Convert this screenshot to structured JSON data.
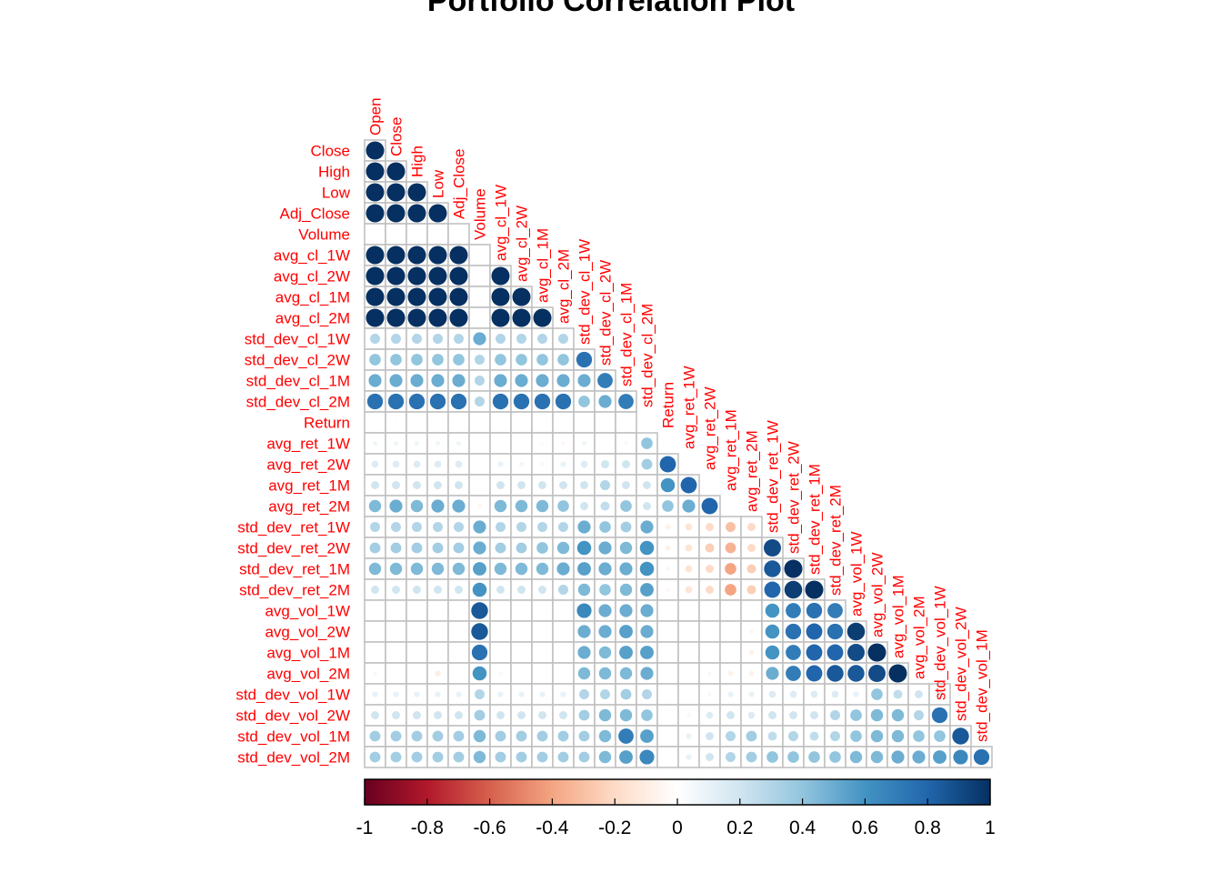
{
  "title": "Portfolio Correlation Plot",
  "chart_data": {
    "type": "heatmap",
    "title": "Portfolio Correlation Plot",
    "layout": "lower-triangle, diagonal omitted, circle glyphs sized by |r|",
    "row_labels": [
      "Close",
      "High",
      "Low",
      "Adj_Close",
      "Volume",
      "avg_cl_1W",
      "avg_cl_2W",
      "avg_cl_1M",
      "avg_cl_2M",
      "std_dev_cl_1W",
      "std_dev_cl_2W",
      "std_dev_cl_1M",
      "std_dev_cl_2M",
      "Return",
      "avg_ret_1W",
      "avg_ret_2W",
      "avg_ret_1M",
      "avg_ret_2M",
      "std_dev_ret_1W",
      "std_dev_ret_2W",
      "std_dev_ret_1M",
      "std_dev_ret_2M",
      "avg_vol_1W",
      "avg_vol_2W",
      "avg_vol_1M",
      "avg_vol_2M",
      "std_dev_vol_1W",
      "std_dev_vol_2W",
      "std_dev_vol_1M",
      "std_dev_vol_2M"
    ],
    "col_labels": [
      "Open",
      "Close",
      "High",
      "Low",
      "Adj_Close",
      "Volume",
      "avg_cl_1W",
      "avg_cl_2W",
      "avg_cl_1M",
      "avg_cl_2M",
      "std_dev_cl_1W",
      "std_dev_cl_2W",
      "std_dev_cl_1M",
      "std_dev_cl_2M",
      "Return",
      "avg_ret_1W",
      "avg_ret_2W",
      "avg_ret_1M",
      "avg_ret_2M",
      "std_dev_ret_1W",
      "std_dev_ret_2W",
      "std_dev_ret_1M",
      "std_dev_ret_2M",
      "avg_vol_1W",
      "avg_vol_2W",
      "avg_vol_1M",
      "avg_vol_2M",
      "std_dev_vol_1W",
      "std_dev_vol_2W",
      "std_dev_vol_1M"
    ],
    "matrix": [
      [
        1.0
      ],
      [
        1.0,
        1.0
      ],
      [
        1.0,
        1.0,
        1.0
      ],
      [
        1.0,
        1.0,
        1.0,
        1.0
      ],
      [
        0.0,
        0.0,
        0.0,
        0.0,
        0.0
      ],
      [
        1.0,
        1.0,
        1.0,
        1.0,
        1.0,
        0.0
      ],
      [
        1.0,
        1.0,
        1.0,
        1.0,
        1.0,
        0.0,
        1.0
      ],
      [
        1.0,
        1.0,
        1.0,
        1.0,
        1.0,
        0.0,
        1.0,
        1.0
      ],
      [
        1.0,
        1.0,
        1.0,
        1.0,
        1.0,
        0.0,
        1.0,
        1.0,
        1.0
      ],
      [
        0.3,
        0.3,
        0.3,
        0.3,
        0.3,
        0.5,
        0.3,
        0.3,
        0.3,
        0.3
      ],
      [
        0.4,
        0.4,
        0.4,
        0.4,
        0.4,
        0.3,
        0.4,
        0.4,
        0.4,
        0.4,
        0.75
      ],
      [
        0.5,
        0.5,
        0.5,
        0.5,
        0.5,
        0.3,
        0.5,
        0.5,
        0.5,
        0.5,
        0.5,
        0.7
      ],
      [
        0.75,
        0.75,
        0.75,
        0.75,
        0.75,
        0.3,
        0.75,
        0.75,
        0.75,
        0.75,
        0.4,
        0.5,
        0.7
      ],
      [
        0.02,
        0.02,
        0.0,
        0.0,
        0.02,
        0.0,
        0.0,
        0.0,
        0.02,
        0.0,
        0.0,
        0.0,
        0.0
      ],
      [
        0.07,
        0.07,
        0.07,
        0.07,
        0.07,
        0.0,
        0.0,
        0.0,
        0.03,
        -0.05,
        0.07,
        0.0,
        0.05,
        0.4
      ],
      [
        0.15,
        0.15,
        0.15,
        0.15,
        0.15,
        0.0,
        0.1,
        0.07,
        0.05,
        0.1,
        0.15,
        0.2,
        0.2,
        0.35,
        0.8
      ],
      [
        0.2,
        0.2,
        0.2,
        0.2,
        0.2,
        0.0,
        0.2,
        0.2,
        0.2,
        0.2,
        0.2,
        0.3,
        0.2,
        0.2,
        0.6,
        0.8
      ],
      [
        0.45,
        0.5,
        0.45,
        0.5,
        0.5,
        -0.05,
        0.45,
        0.45,
        0.45,
        0.4,
        0.2,
        0.25,
        0.4,
        0.2,
        0.4,
        0.5,
        0.8
      ],
      [
        0.3,
        0.3,
        0.3,
        0.3,
        0.3,
        0.5,
        0.3,
        0.3,
        0.3,
        0.3,
        0.5,
        0.4,
        0.35,
        0.5,
        -0.08,
        -0.15,
        -0.2,
        -0.3,
        -0.2
      ],
      [
        0.35,
        0.35,
        0.35,
        0.35,
        0.35,
        0.5,
        0.35,
        0.35,
        0.4,
        0.45,
        0.6,
        0.5,
        0.45,
        0.6,
        -0.08,
        -0.15,
        -0.25,
        -0.35,
        -0.2,
        0.9
      ],
      [
        0.45,
        0.45,
        0.45,
        0.45,
        0.45,
        0.55,
        0.45,
        0.45,
        0.45,
        0.5,
        0.55,
        0.5,
        0.5,
        0.6,
        -0.05,
        -0.15,
        -0.2,
        -0.4,
        -0.25,
        0.85,
        1.0
      ],
      [
        0.2,
        0.2,
        0.2,
        0.2,
        0.2,
        0.6,
        0.2,
        0.2,
        0.2,
        0.3,
        0.45,
        0.4,
        0.45,
        0.55,
        -0.05,
        -0.15,
        -0.2,
        -0.4,
        -0.25,
        0.8,
        0.95,
        1.0
      ],
      [
        0.0,
        0.0,
        0.0,
        0.0,
        0.0,
        0.85,
        0.0,
        0.0,
        0.0,
        0.0,
        0.65,
        0.5,
        0.5,
        0.5,
        0.0,
        0.0,
        0.0,
        0.0,
        0.0,
        0.6,
        0.7,
        0.75,
        0.7
      ],
      [
        0.0,
        0.0,
        0.0,
        0.0,
        0.0,
        0.85,
        0.0,
        0.0,
        0.0,
        0.0,
        0.5,
        0.5,
        0.55,
        0.5,
        0.0,
        0.0,
        0.0,
        0.0,
        -0.05,
        0.6,
        0.75,
        0.8,
        0.75,
        0.95
      ],
      [
        0.0,
        0.0,
        0.0,
        0.0,
        0.0,
        0.75,
        0.0,
        0.0,
        0.0,
        0.0,
        0.5,
        0.45,
        0.55,
        0.55,
        0.0,
        0.0,
        0.0,
        0.0,
        -0.08,
        0.6,
        0.7,
        0.8,
        0.8,
        0.9,
        1.0
      ],
      [
        -0.05,
        0.0,
        0.0,
        -0.1,
        0.0,
        0.6,
        0.05,
        0.0,
        0.0,
        0.0,
        0.45,
        0.45,
        0.45,
        0.5,
        0.0,
        0.0,
        -0.05,
        -0.08,
        -0.08,
        0.5,
        0.7,
        0.8,
        0.85,
        0.85,
        0.9,
        1.0
      ],
      [
        0.1,
        0.1,
        0.1,
        0.1,
        0.1,
        0.3,
        0.1,
        0.1,
        0.1,
        0.1,
        0.3,
        0.3,
        0.35,
        0.3,
        0.0,
        0.0,
        0.05,
        0.1,
        0.1,
        0.15,
        0.15,
        0.15,
        0.15,
        0.1,
        0.4,
        0.25,
        0.2,
        0.15
      ],
      [
        0.2,
        0.2,
        0.2,
        0.2,
        0.2,
        0.35,
        0.2,
        0.2,
        0.2,
        0.2,
        0.35,
        0.45,
        0.45,
        0.4,
        0.0,
        0.05,
        0.15,
        0.2,
        0.15,
        0.2,
        0.2,
        0.2,
        0.3,
        0.4,
        0.45,
        0.45,
        0.3,
        0.75
      ],
      [
        0.35,
        0.35,
        0.35,
        0.35,
        0.35,
        0.45,
        0.35,
        0.35,
        0.35,
        0.35,
        0.35,
        0.45,
        0.7,
        0.55,
        0.0,
        0.1,
        0.2,
        0.3,
        0.35,
        0.25,
        0.3,
        0.25,
        0.3,
        0.4,
        0.45,
        0.45,
        0.4,
        0.4,
        0.85
      ],
      [
        0.35,
        0.35,
        0.35,
        0.35,
        0.35,
        0.45,
        0.35,
        0.35,
        0.35,
        0.35,
        0.35,
        0.45,
        0.55,
        0.65,
        0.0,
        0.1,
        0.2,
        0.3,
        0.35,
        0.4,
        0.4,
        0.4,
        0.4,
        0.45,
        0.45,
        0.5,
        0.5,
        0.55,
        0.65,
        0.75
      ]
    ],
    "colorbar": {
      "range": [
        -1,
        1
      ],
      "tick_labels": [
        "-1",
        "-0.8",
        "-0.6",
        "-0.4",
        "-0.2",
        "0",
        "0.2",
        "0.4",
        "0.6",
        "0.8",
        "1"
      ],
      "colors": [
        "#67001F",
        "#B2182B",
        "#D6604D",
        "#F4A582",
        "#FDDBC7",
        "#FFFFFF",
        "#D1E5F0",
        "#92C5DE",
        "#4393C3",
        "#2166AC",
        "#053061"
      ]
    },
    "label_color": "#FF0000",
    "grid_color": "#BEBEBE"
  }
}
